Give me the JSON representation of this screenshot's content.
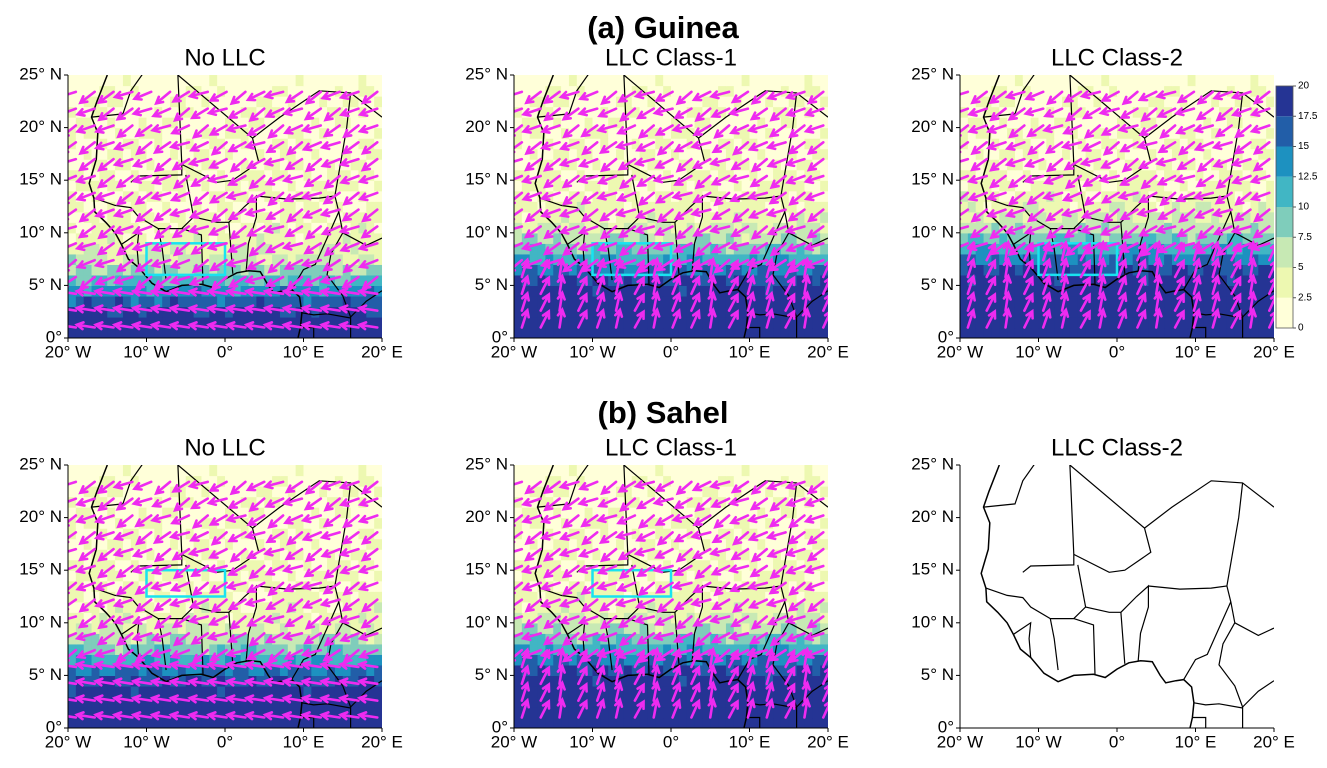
{
  "figure": {
    "sections": [
      {
        "title": "(a) Guinea",
        "panels": [
          {
            "title": "No LLC",
            "has_data": true
          },
          {
            "title": "LLC Class-1",
            "has_data": true
          },
          {
            "title": "LLC Class-2",
            "has_data": true
          }
        ]
      },
      {
        "title": "(b) Sahel",
        "panels": [
          {
            "title": "No LLC",
            "has_data": true
          },
          {
            "title": "LLC Class-1",
            "has_data": true
          },
          {
            "title": "LLC Class-2",
            "has_data": false
          }
        ]
      }
    ],
    "map_axes": {
      "xlim": [
        -20,
        20
      ],
      "ylim": [
        0,
        25
      ],
      "xticks": [
        {
          "value": -20,
          "label": "20° W"
        },
        {
          "value": -10,
          "label": "10° W"
        },
        {
          "value": 0,
          "label": "0°"
        },
        {
          "value": 10,
          "label": "10° E"
        },
        {
          "value": 20,
          "label": "20° E"
        }
      ],
      "yticks": [
        {
          "value": 0,
          "label": "0°"
        },
        {
          "value": 5,
          "label": "5° N"
        },
        {
          "value": 10,
          "label": "10° N"
        },
        {
          "value": 15,
          "label": "15° N"
        },
        {
          "value": 20,
          "label": "20° N"
        },
        {
          "value": 25,
          "label": "25° N"
        }
      ]
    },
    "colorbar": {
      "ticks": [
        0,
        2.5,
        5,
        7.5,
        10,
        12.5,
        15,
        17.5,
        20
      ],
      "colors": [
        "#ffffd9",
        "#edf8b1",
        "#c7e9b4",
        "#7fcdbb",
        "#41b6c4",
        "#1d91c0",
        "#225ea8",
        "#253494"
      ]
    }
  }
}
